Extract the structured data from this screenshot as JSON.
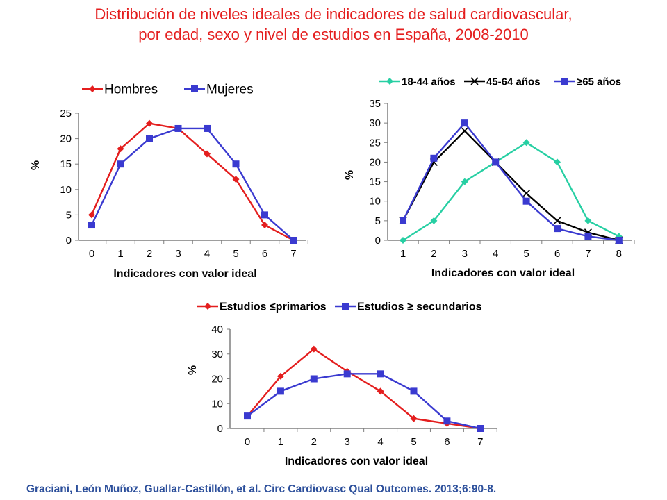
{
  "title": {
    "line1": "Distribución de niveles ideales de indicadores de salud cardiovascular,",
    "line2": "por edad, sexo y nivel de estudios en España, 2008-2010"
  },
  "citation": "Graciani, León Muñoz, Guallar-Castillón, et al. Circ Cardiovasc Qual Outcomes. 2013;6:90-8.",
  "chart_data": [
    {
      "type": "line",
      "xlabel": "Indicadores con valor ideal",
      "ylabel": "%",
      "x": [
        0,
        1,
        2,
        3,
        4,
        5,
        6,
        7
      ],
      "ylim": [
        0,
        25
      ],
      "yticks": [
        0,
        5,
        10,
        15,
        20,
        25
      ],
      "grid": false,
      "legend": "top",
      "series": [
        {
          "name": "Hombres",
          "color": "#e41e1e",
          "marker": "diamond",
          "values": [
            5,
            18,
            23,
            22,
            17,
            12,
            3,
            0
          ]
        },
        {
          "name": "Mujeres",
          "color": "#3a3ad0",
          "marker": "square",
          "values": [
            3,
            15,
            20,
            22,
            22,
            15,
            5,
            0
          ]
        }
      ]
    },
    {
      "type": "line",
      "xlabel": "Indicadores con valor ideal",
      "ylabel": "%",
      "x": [
        1,
        2,
        3,
        4,
        5,
        6,
        7,
        8
      ],
      "ylim": [
        0,
        35
      ],
      "yticks": [
        0,
        5,
        10,
        15,
        20,
        25,
        30,
        35
      ],
      "grid": false,
      "legend": "top",
      "series": [
        {
          "name": "18-44 años",
          "color": "#27cfa3",
          "marker": "diamond",
          "values": [
            0,
            5,
            15,
            20,
            25,
            20,
            5,
            1
          ]
        },
        {
          "name": "45-64 años",
          "color": "#000000",
          "marker": "x",
          "values": [
            5,
            20,
            28,
            20,
            12,
            5,
            2,
            0
          ]
        },
        {
          "name": "≥65 años",
          "color": "#3a3ad0",
          "marker": "square",
          "values": [
            5,
            21,
            30,
            20,
            10,
            3,
            1,
            0
          ]
        }
      ]
    },
    {
      "type": "line",
      "xlabel": "Indicadores con valor ideal",
      "ylabel": "%",
      "x": [
        0,
        1,
        2,
        3,
        4,
        5,
        6,
        7
      ],
      "ylim": [
        0,
        40
      ],
      "yticks": [
        0,
        10,
        20,
        30,
        40
      ],
      "grid": false,
      "legend": "top",
      "series": [
        {
          "name": "Estudios ≤primarios",
          "color": "#e41e1e",
          "marker": "diamond",
          "values": [
            5,
            21,
            32,
            23,
            15,
            4,
            2,
            0
          ]
        },
        {
          "name": "Estudios ≥ secundarios",
          "color": "#3a3ad0",
          "marker": "square",
          "values": [
            5,
            15,
            20,
            22,
            22,
            15,
            3,
            0
          ]
        }
      ]
    }
  ]
}
